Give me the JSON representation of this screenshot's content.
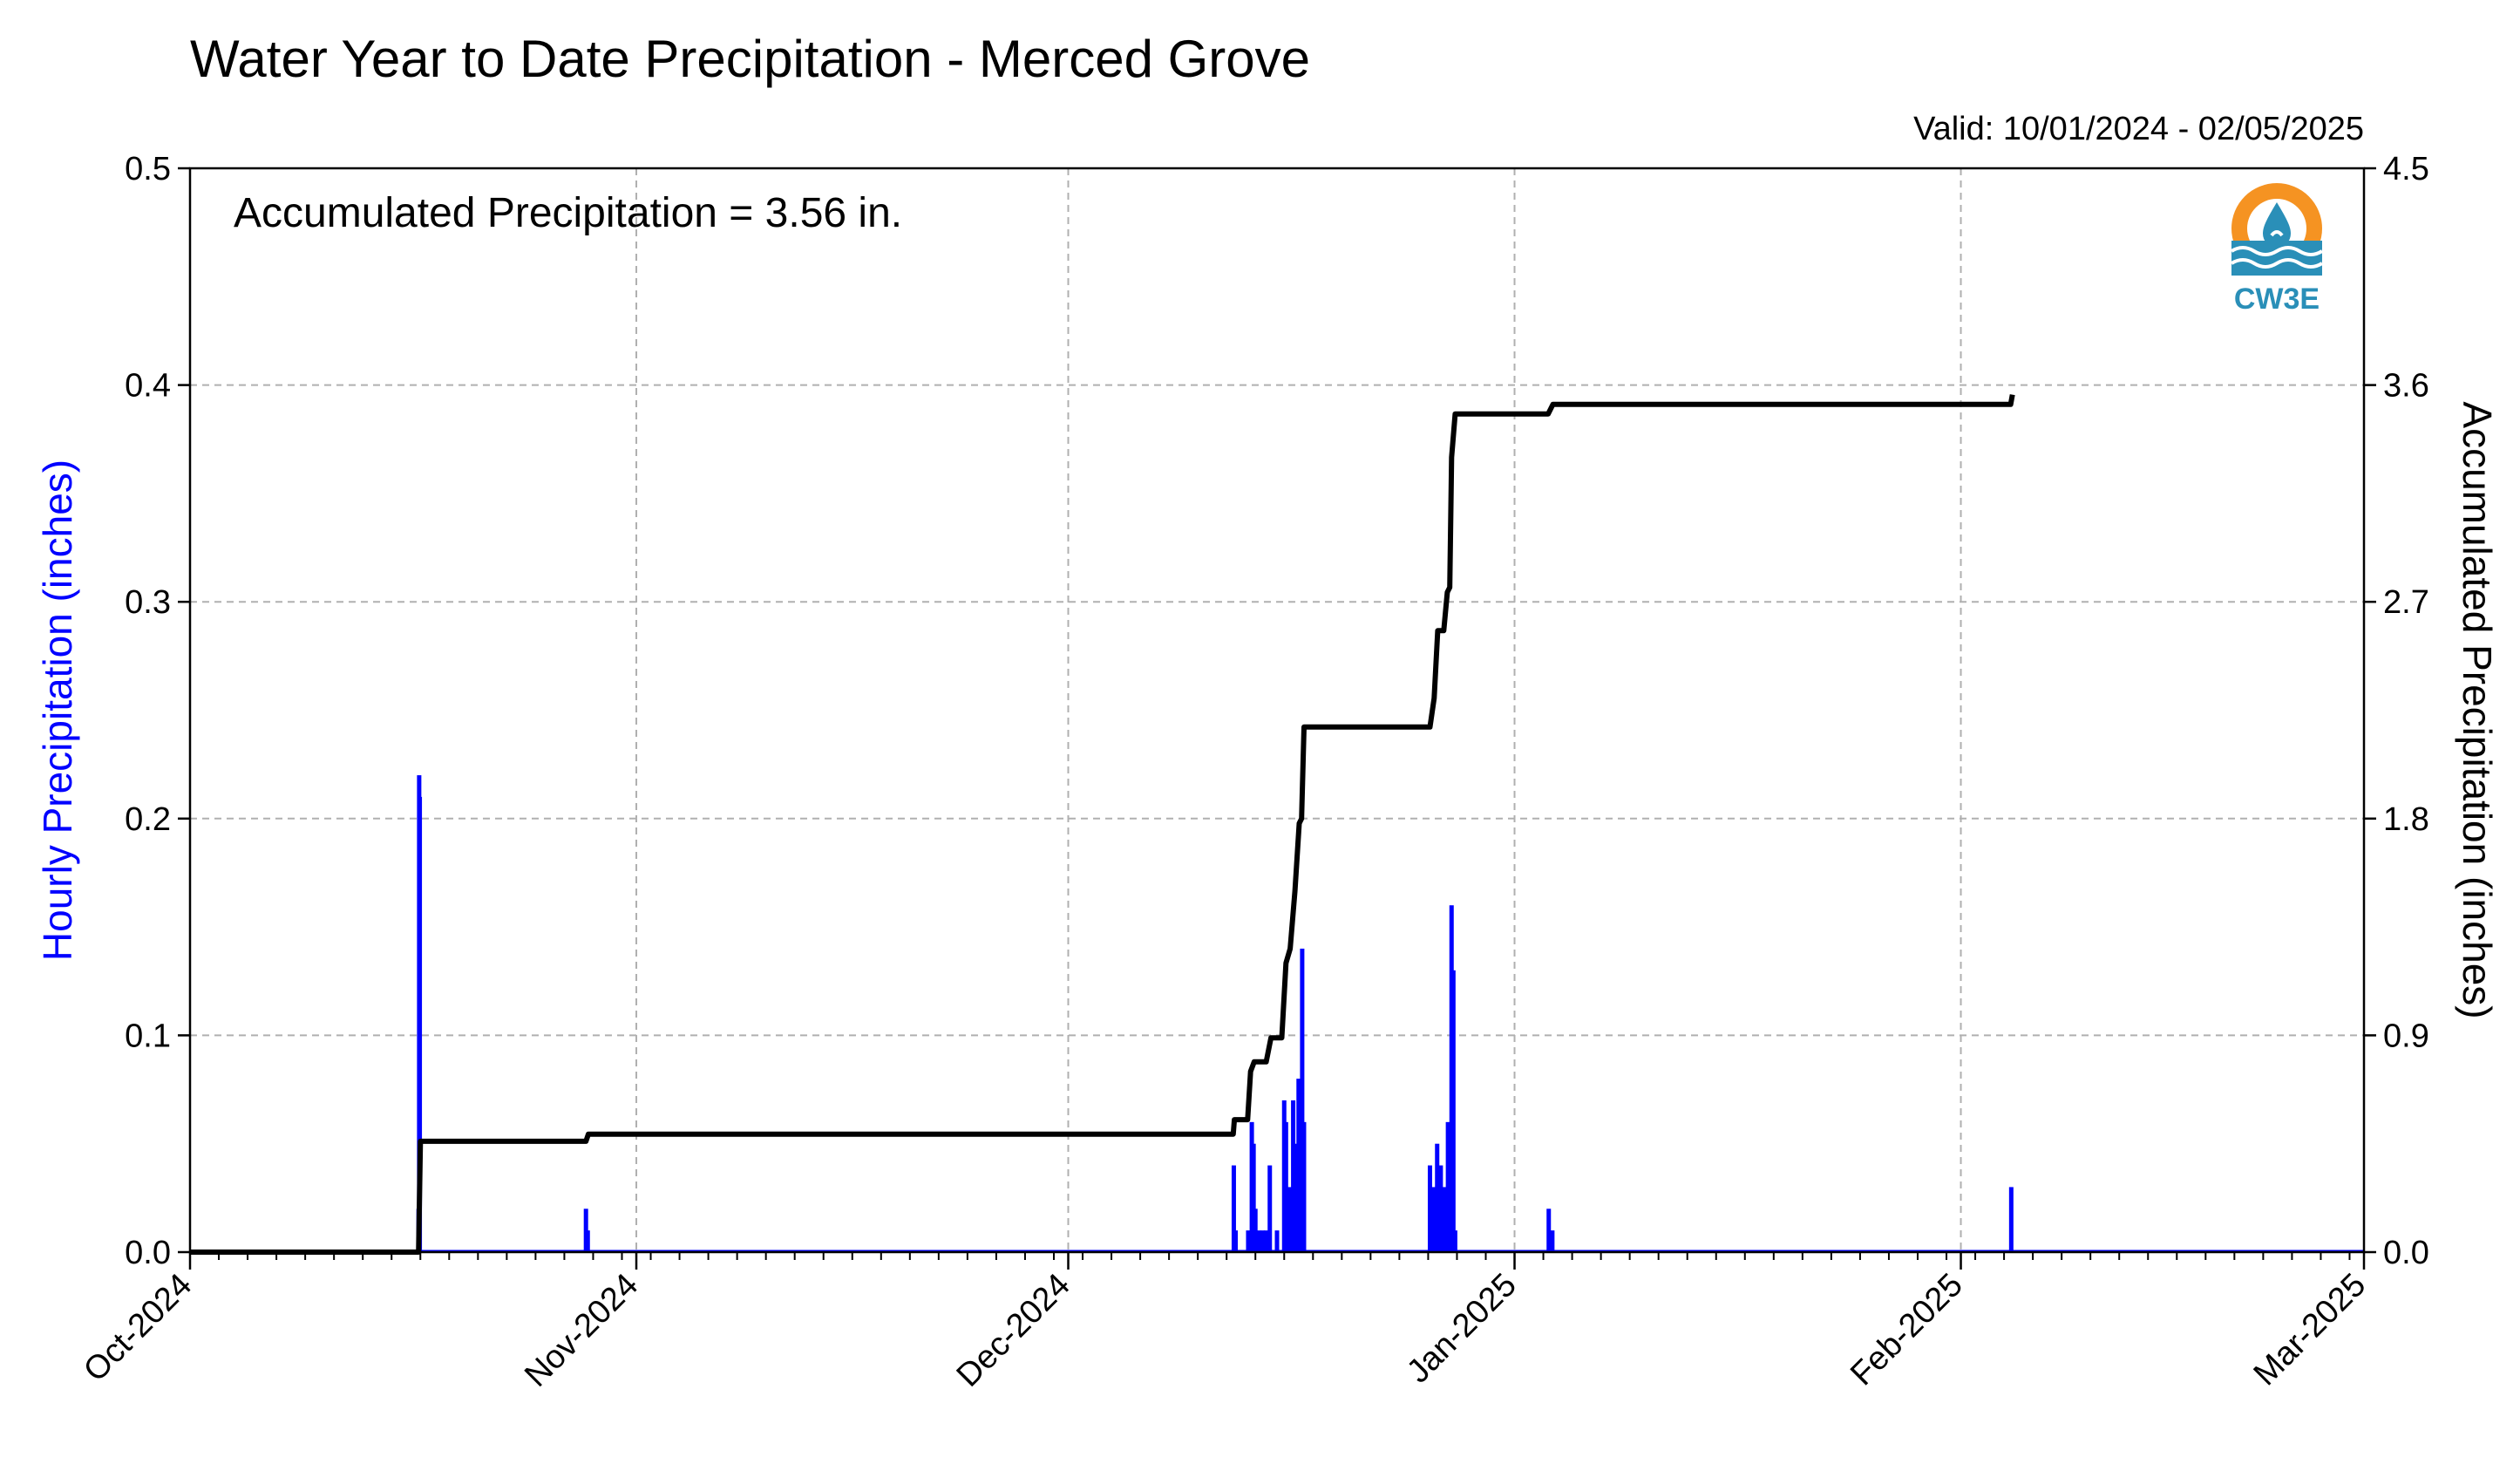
{
  "chart_data": {
    "type": "bar+line",
    "title": "Water Year to Date Precipitation - Merced Grove",
    "subtitle": "Valid: 10/01/2024 - 02/05/2025",
    "annotation": "Accumulated Precipitation = 3.56 in.",
    "logo_text": "CW3E",
    "ylabel_left": "Hourly Precipitation (inches)",
    "ylabel_right": "Accumulated Precipitation (inches)",
    "x_range": [
      "2024-10-01",
      "2025-03-01"
    ],
    "ylim_left": [
      0,
      0.5
    ],
    "ylim_right": [
      0,
      4.5
    ],
    "grid": true,
    "x_ticks": [
      {
        "date": "2024-10-01",
        "label": "Oct-2024"
      },
      {
        "date": "2024-11-01",
        "label": "Nov-2024"
      },
      {
        "date": "2024-12-01",
        "label": "Dec-2024"
      },
      {
        "date": "2025-01-01",
        "label": "Jan-2025"
      },
      {
        "date": "2025-02-01",
        "label": "Feb-2025"
      },
      {
        "date": "2025-03-01",
        "label": "Mar-2025"
      }
    ],
    "y_ticks_left": [
      "0.0",
      "0.1",
      "0.2",
      "0.3",
      "0.4",
      "0.5"
    ],
    "y_ticks_right": [
      "0.0",
      "0.9",
      "1.8",
      "2.7",
      "3.6",
      "4.5"
    ],
    "colors": {
      "hourly": "#0000ff",
      "accumulated": "#000000",
      "grid": "#b0b0b0"
    },
    "series": [
      {
        "name": "Hourly Precipitation",
        "axis": "left",
        "kind": "bar",
        "points": [
          {
            "t": "2024-10-16T21:00",
            "v": 0.02
          },
          {
            "t": "2024-10-16T22:00",
            "v": 0.22
          },
          {
            "t": "2024-10-16T23:00",
            "v": 0.21
          },
          {
            "t": "2024-10-28T12:00",
            "v": 0.02
          },
          {
            "t": "2024-10-28T15:00",
            "v": 0.01
          },
          {
            "t": "2024-12-12T12:00",
            "v": 0.04
          },
          {
            "t": "2024-12-12T15:00",
            "v": 0.01
          },
          {
            "t": "2024-12-13T12:00",
            "v": 0.01
          },
          {
            "t": "2024-12-13T18:00",
            "v": 0.06
          },
          {
            "t": "2024-12-13T21:00",
            "v": 0.05
          },
          {
            "t": "2024-12-14T00:00",
            "v": 0.02
          },
          {
            "t": "2024-12-14T06:00",
            "v": 0.01
          },
          {
            "t": "2024-12-14T12:00",
            "v": 0.01
          },
          {
            "t": "2024-12-14T18:00",
            "v": 0.01
          },
          {
            "t": "2024-12-15T00:00",
            "v": 0.04
          },
          {
            "t": "2024-12-15T12:00",
            "v": 0.01
          },
          {
            "t": "2024-12-16T00:00",
            "v": 0.07
          },
          {
            "t": "2024-12-16T03:00",
            "v": 0.06
          },
          {
            "t": "2024-12-16T09:00",
            "v": 0.03
          },
          {
            "t": "2024-12-16T15:00",
            "v": 0.07
          },
          {
            "t": "2024-12-16T21:00",
            "v": 0.05
          },
          {
            "t": "2024-12-17T00:00",
            "v": 0.08
          },
          {
            "t": "2024-12-17T06:00",
            "v": 0.14
          },
          {
            "t": "2024-12-17T09:00",
            "v": 0.06
          },
          {
            "t": "2024-12-26T03:00",
            "v": 0.04
          },
          {
            "t": "2024-12-26T09:00",
            "v": 0.03
          },
          {
            "t": "2024-12-26T15:00",
            "v": 0.05
          },
          {
            "t": "2024-12-26T21:00",
            "v": 0.04
          },
          {
            "t": "2024-12-27T03:00",
            "v": 0.03
          },
          {
            "t": "2024-12-27T09:00",
            "v": 0.06
          },
          {
            "t": "2024-12-27T12:00",
            "v": 0.02
          },
          {
            "t": "2024-12-27T15:00",
            "v": 0.16
          },
          {
            "t": "2024-12-27T18:00",
            "v": 0.13
          },
          {
            "t": "2024-12-27T21:00",
            "v": 0.01
          },
          {
            "t": "2025-01-03T09:00",
            "v": 0.02
          },
          {
            "t": "2025-01-03T15:00",
            "v": 0.01
          },
          {
            "t": "2025-02-04T12:00",
            "v": 0.03
          }
        ]
      },
      {
        "name": "Accumulated Precipitation",
        "axis": "right",
        "kind": "step",
        "points": [
          {
            "t": "2024-10-01T00:00",
            "v": 0.0
          },
          {
            "t": "2024-10-16T21:00",
            "v": 0.0
          },
          {
            "t": "2024-10-17T00:00",
            "v": 0.46
          },
          {
            "t": "2024-10-28T12:00",
            "v": 0.46
          },
          {
            "t": "2024-10-28T16:00",
            "v": 0.49
          },
          {
            "t": "2024-12-12T11:00",
            "v": 0.49
          },
          {
            "t": "2024-12-12T13:00",
            "v": 0.55
          },
          {
            "t": "2024-12-13T11:00",
            "v": 0.55
          },
          {
            "t": "2024-12-13T16:00",
            "v": 0.75
          },
          {
            "t": "2024-12-13T22:00",
            "v": 0.79
          },
          {
            "t": "2024-12-14T18:00",
            "v": 0.79
          },
          {
            "t": "2024-12-15T02:00",
            "v": 0.89
          },
          {
            "t": "2024-12-15T20:00",
            "v": 0.89
          },
          {
            "t": "2024-12-16T03:00",
            "v": 1.2
          },
          {
            "t": "2024-12-16T10:00",
            "v": 1.26
          },
          {
            "t": "2024-12-16T18:00",
            "v": 1.5
          },
          {
            "t": "2024-12-17T01:00",
            "v": 1.78
          },
          {
            "t": "2024-12-17T05:00",
            "v": 1.8
          },
          {
            "t": "2024-12-17T09:00",
            "v": 2.18
          },
          {
            "t": "2024-12-26T03:00",
            "v": 2.18
          },
          {
            "t": "2024-12-26T10:00",
            "v": 2.3
          },
          {
            "t": "2024-12-26T16:00",
            "v": 2.58
          },
          {
            "t": "2024-12-27T02:00",
            "v": 2.58
          },
          {
            "t": "2024-12-27T08:00",
            "v": 2.74
          },
          {
            "t": "2024-12-27T12:00",
            "v": 2.76
          },
          {
            "t": "2024-12-27T15:00",
            "v": 3.3
          },
          {
            "t": "2024-12-27T21:00",
            "v": 3.48
          },
          {
            "t": "2025-01-03T08:00",
            "v": 3.48
          },
          {
            "t": "2025-01-03T16:00",
            "v": 3.52
          },
          {
            "t": "2025-02-04T11:00",
            "v": 3.52
          },
          {
            "t": "2025-02-04T14:00",
            "v": 3.56
          }
        ]
      }
    ]
  }
}
